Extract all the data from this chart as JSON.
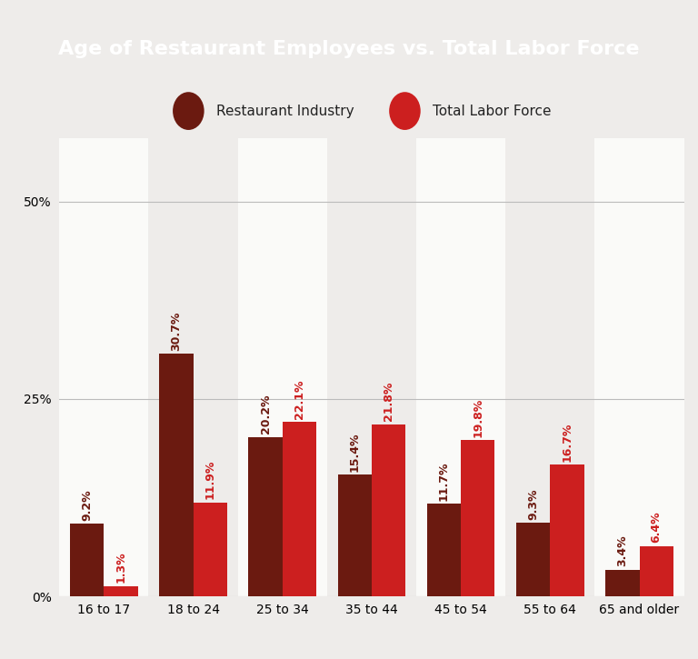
{
  "title": "Age of Restaurant Employees vs. Total Labor Force",
  "categories": [
    "16 to 17",
    "18 to 24",
    "25 to 34",
    "35 to 44",
    "45 to 54",
    "55 to 64",
    "65 and older"
  ],
  "restaurant_values": [
    9.2,
    30.7,
    20.2,
    15.4,
    11.7,
    9.3,
    3.4
  ],
  "laborforce_values": [
    1.3,
    11.9,
    22.1,
    21.8,
    19.8,
    16.7,
    6.4
  ],
  "restaurant_color": "#6B1A10",
  "laborforce_color": "#CC1F1F",
  "title_bg_color": "#7B5530",
  "title_text_color": "#FFFFFF",
  "chart_bg_color": "#EEECEA",
  "col_highlight_color": "#FAFAF8",
  "top_border_color": "#C0392B",
  "legend_restaurant_label": "Restaurant Industry",
  "legend_laborforce_label": "Total Labor Force",
  "ylim": [
    0,
    50
  ],
  "yticks": [
    0,
    25,
    50
  ],
  "ytick_labels": [
    "0%",
    "25%",
    "50%"
  ],
  "bar_width": 0.38,
  "label_fontsize": 9.0,
  "title_fontsize": 16,
  "tick_fontsize": 10,
  "legend_fontsize": 11
}
